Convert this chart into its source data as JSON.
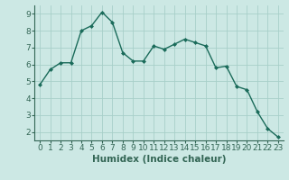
{
  "x": [
    0,
    1,
    2,
    3,
    4,
    5,
    6,
    7,
    8,
    9,
    10,
    11,
    12,
    13,
    14,
    15,
    16,
    17,
    18,
    19,
    20,
    21,
    22,
    23
  ],
  "y": [
    4.8,
    5.7,
    6.1,
    6.1,
    8.0,
    8.3,
    9.1,
    8.5,
    6.7,
    6.2,
    6.2,
    7.1,
    6.9,
    7.2,
    7.5,
    7.3,
    7.1,
    5.8,
    5.9,
    4.7,
    4.5,
    3.2,
    2.2,
    1.7
  ],
  "line_color": "#1a6b5a",
  "marker": "D",
  "marker_size": 2.0,
  "bg_color": "#cce8e4",
  "grid_color": "#a8cfc9",
  "xlabel": "Humidex (Indice chaleur)",
  "ylim": [
    1.5,
    9.5
  ],
  "xlim": [
    -0.5,
    23.5
  ],
  "yticks": [
    2,
    3,
    4,
    5,
    6,
    7,
    8,
    9
  ],
  "xticks": [
    0,
    1,
    2,
    3,
    4,
    5,
    6,
    7,
    8,
    9,
    10,
    11,
    12,
    13,
    14,
    15,
    16,
    17,
    18,
    19,
    20,
    21,
    22,
    23
  ],
  "tick_fontsize": 6.5,
  "xlabel_fontsize": 7.5,
  "line_width": 1.0,
  "spine_color": "#336655"
}
